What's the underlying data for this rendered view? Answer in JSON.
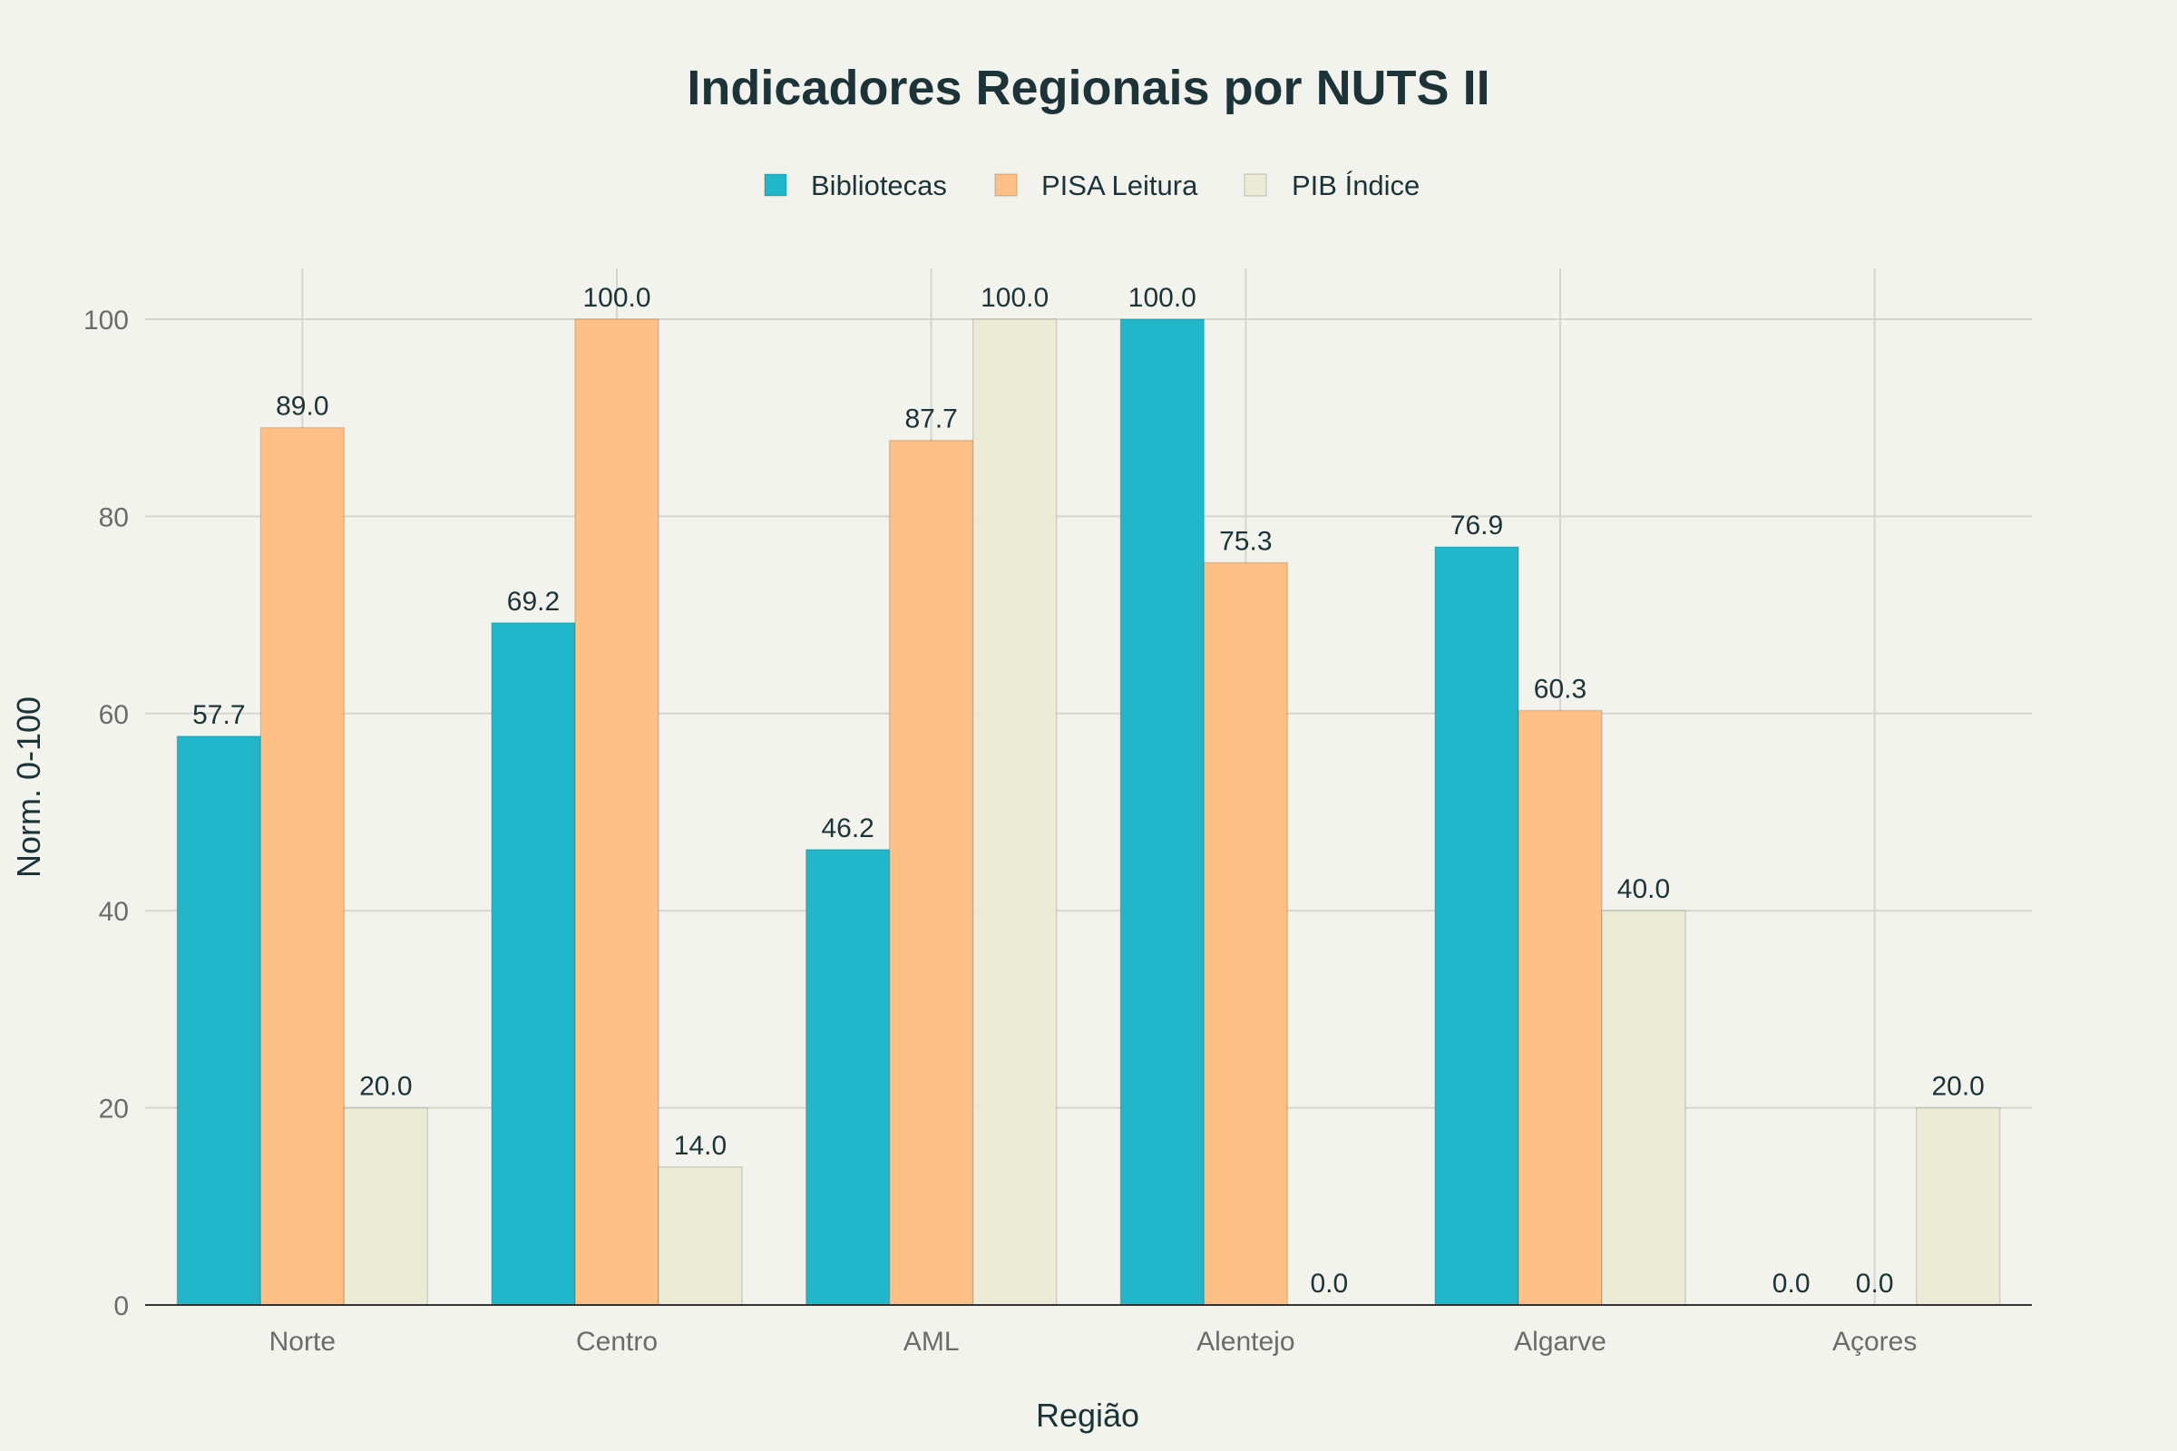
{
  "chart_data": {
    "type": "bar",
    "title": "Indicadores Regionais por NUTS II",
    "xlabel": "Região",
    "ylabel": "Norm. 0-100",
    "categories": [
      "Norte",
      "Centro",
      "AML",
      "Alentejo",
      "Algarve",
      "Açores"
    ],
    "series": [
      {
        "name": "Bibliotecas",
        "color": "#21b7cb",
        "values": [
          57.7,
          69.2,
          46.2,
          100.0,
          76.9,
          0.0
        ]
      },
      {
        "name": "PISA Leitura",
        "color": "#ffc085",
        "values": [
          89.0,
          100.0,
          87.7,
          75.3,
          60.3,
          0.0
        ]
      },
      {
        "name": "PIB Índice",
        "color": "#ecebd6",
        "values": [
          20.0,
          14.0,
          100.0,
          0.0,
          40.0,
          20.0
        ]
      }
    ],
    "ylim": [
      0,
      105
    ],
    "yticks": [
      0,
      20,
      40,
      60,
      80,
      100
    ],
    "grid": true,
    "legend_position": "top-center"
  }
}
